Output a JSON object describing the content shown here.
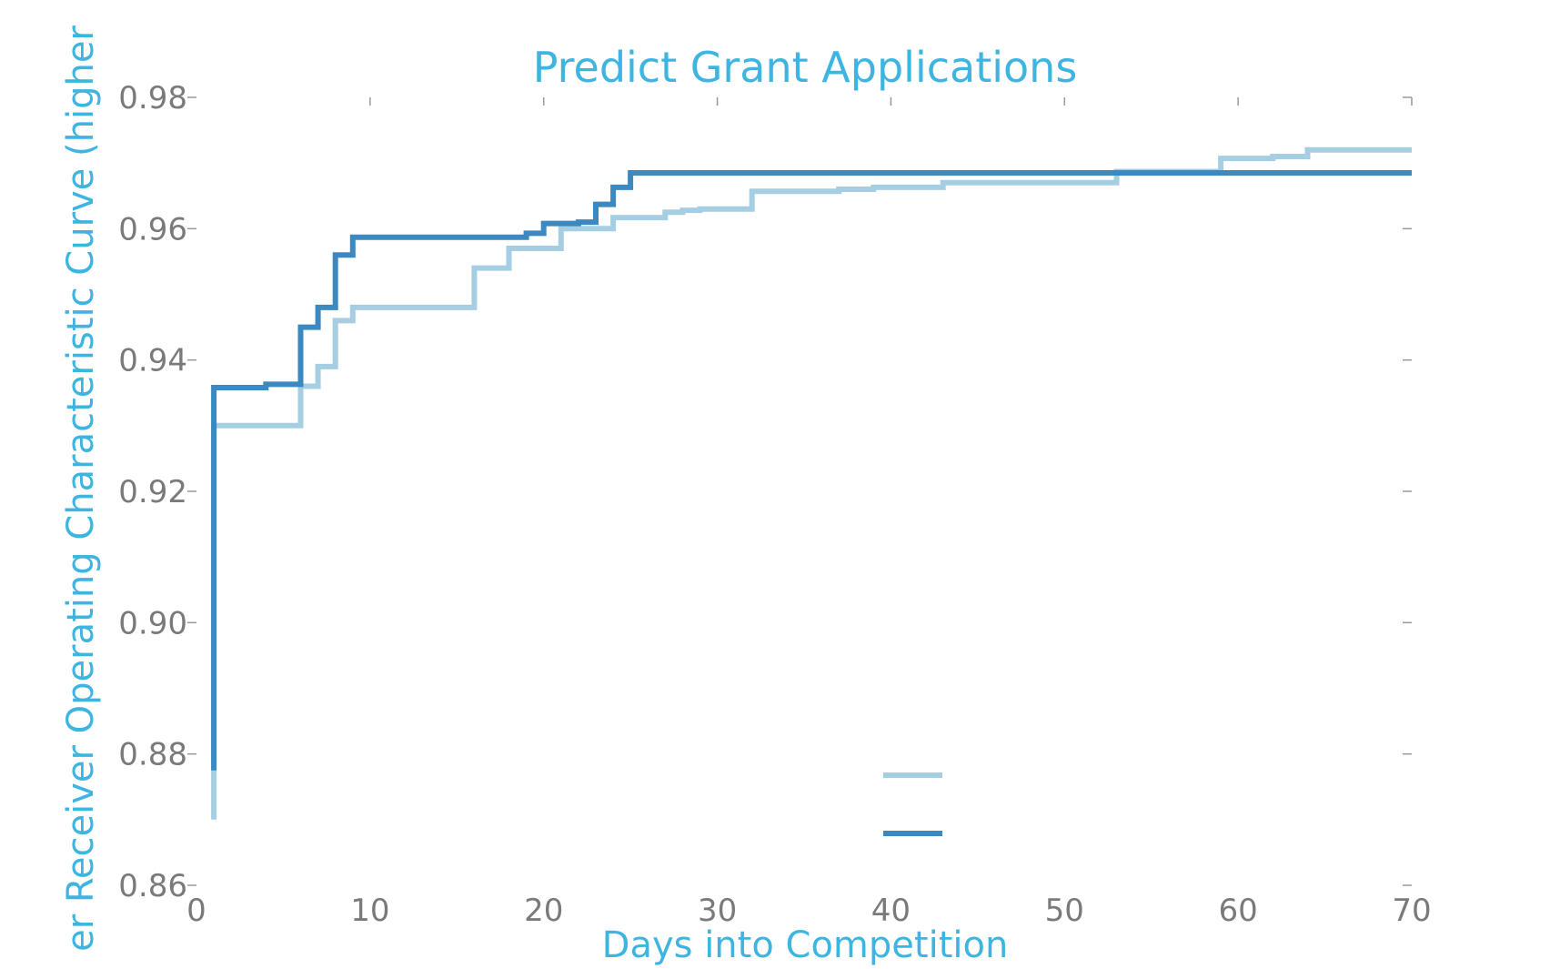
{
  "chart_data": {
    "type": "line",
    "title": "Predict Grant Applications",
    "xlabel": "Days into Competition",
    "ylabel": "er Receiver Operating Characteristic Curve (higher",
    "xlim": [
      0,
      70
    ],
    "ylim": [
      0.86,
      0.98
    ],
    "xticks": [
      0,
      10,
      20,
      30,
      40,
      50,
      60,
      70
    ],
    "yticks": [
      0.86,
      0.88,
      0.9,
      0.92,
      0.94,
      0.96,
      0.98
    ],
    "xtick_labels": [
      "0",
      "10",
      "20",
      "30",
      "40",
      "50",
      "60",
      "70"
    ],
    "ytick_labels": [
      "0.86",
      "0.88",
      "0.90",
      "0.92",
      "0.94",
      "0.96",
      "0.98"
    ],
    "grid": false,
    "legend_position": "lower-center",
    "step": "post",
    "series": [
      {
        "color": "#a6cee3",
        "x": [
          1,
          1,
          6,
          7,
          8,
          9,
          16,
          18,
          21,
          24,
          27,
          28,
          29,
          32,
          37,
          39,
          43,
          53,
          59,
          62,
          64,
          70
        ],
        "y": [
          0.87,
          0.93,
          0.936,
          0.939,
          0.946,
          0.948,
          0.954,
          0.957,
          0.96,
          0.9617,
          0.9625,
          0.9628,
          0.963,
          0.9657,
          0.966,
          0.9663,
          0.967,
          0.9687,
          0.9707,
          0.971,
          0.972,
          0.972
        ]
      },
      {
        "color": "#3b89c0",
        "x": [
          1,
          1,
          4,
          6,
          7,
          8,
          9,
          19,
          20,
          22,
          23,
          24,
          25,
          70
        ],
        "y": [
          0.8775,
          0.9358,
          0.9363,
          0.945,
          0.948,
          0.956,
          0.9587,
          0.9593,
          0.9608,
          0.961,
          0.9637,
          0.9663,
          0.9685,
          0.9685
        ]
      }
    ]
  }
}
